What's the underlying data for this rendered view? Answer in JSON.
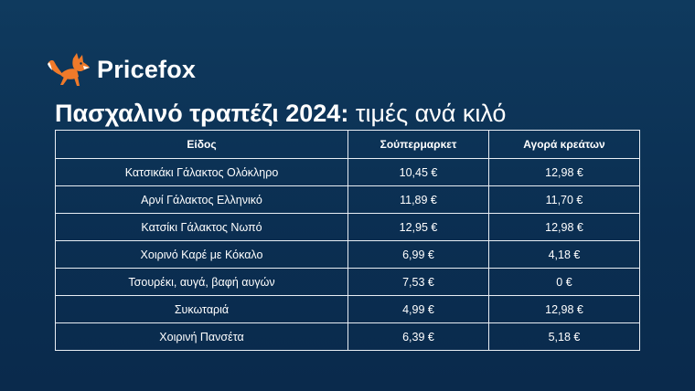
{
  "brand": {
    "name": "Pricefox",
    "icon": "fox-logo-icon",
    "accent_color": "#f07a2a"
  },
  "heading": {
    "title_bold": "Πασχαλινό τραπέζι 2024:",
    "title_light": "τιμές ανά κιλό"
  },
  "table": {
    "columns": [
      "Είδος",
      "Σούπερμαρκετ",
      "Αγορά κρεάτων"
    ],
    "rows": [
      {
        "item": "Κατσικάκι Γάλακτος Ολόκληρο",
        "supermarket": "10,45 €",
        "meat_market": "12,98 €"
      },
      {
        "item": "Αρνί Γάλακτος Ελληνικό",
        "supermarket": "11,89 €",
        "meat_market": "11,70 €"
      },
      {
        "item": "Κατσίκι Γάλακτος Νωπό",
        "supermarket": "12,95 €",
        "meat_market": "12,98 €"
      },
      {
        "item": "Χοιρινό Καρέ με Κόκαλο",
        "supermarket": "6,99 €",
        "meat_market": "4,18 €"
      },
      {
        "item": "Τσουρέκι, αυγά, βαφή αυγών",
        "supermarket": "7,53 €",
        "meat_market": "0 €"
      },
      {
        "item": "Συκωταριά",
        "supermarket": "4,99 €",
        "meat_market": "12,98 €"
      },
      {
        "item": "Χοιρινή Πανσέτα",
        "supermarket": "6,39 €",
        "meat_market": "5,18 €"
      }
    ]
  }
}
